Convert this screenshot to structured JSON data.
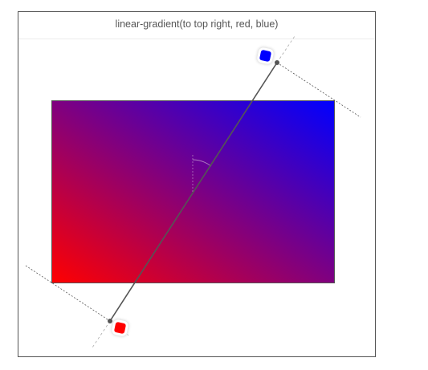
{
  "header": {
    "title": "linear-gradient(to top right, red, blue)"
  },
  "gradient": {
    "direction": "to top right",
    "stops": [
      {
        "color": "red",
        "hex": "#ff0000"
      },
      {
        "color": "blue",
        "hex": "#0000ff"
      }
    ]
  },
  "colors": {
    "frame_border": "#555555",
    "gradient_line": "#555555",
    "guide_line": "#777777",
    "angle_marker": "#b07bc0"
  }
}
